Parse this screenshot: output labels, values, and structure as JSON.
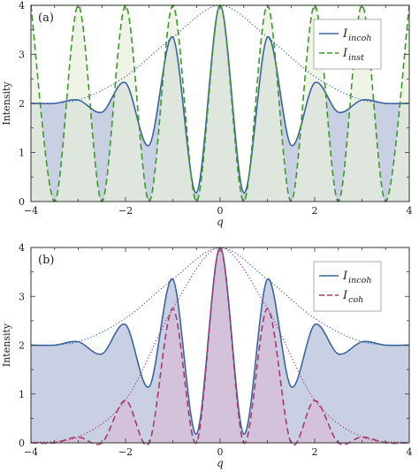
{
  "chart_data": [
    {
      "type": "area",
      "panel_label": "(a)",
      "xlabel": "q",
      "ylabel": "Intensity",
      "xlim": [
        -4,
        4
      ],
      "ylim": [
        0,
        4
      ],
      "x_ticks": [
        "-4",
        "-2",
        "0",
        "2",
        "4"
      ],
      "y_ticks": [
        "0",
        "1",
        "2",
        "3",
        "4"
      ],
      "legend_position": "top-right",
      "series": [
        {
          "key": "I_incoh",
          "name": "I",
          "subscript": "incoh",
          "style": "solid",
          "color": "#3c64a0",
          "fill": "#c3cbe1",
          "x": [
            -4,
            -3.5,
            -3,
            -2.5,
            -2,
            -1.5,
            -1,
            -0.5,
            0,
            0.5,
            1,
            1.5,
            2,
            2.5,
            3,
            3.5,
            4
          ],
          "y": [
            2,
            2,
            2.07,
            1.82,
            2.42,
            1.15,
            3.35,
            0.18,
            4,
            0.18,
            3.35,
            1.15,
            2.42,
            1.82,
            2.07,
            2,
            2
          ]
        },
        {
          "key": "I_inst",
          "name": "I",
          "subscript": "inst",
          "style": "dashed",
          "color": "#3a9a2a",
          "fill": "#e8f0dc",
          "x": [
            -4,
            -3.5,
            -3,
            -2.5,
            -2,
            -1.5,
            -1,
            -0.5,
            0,
            0.5,
            1,
            1.5,
            2,
            2.5,
            3,
            3.5,
            4
          ],
          "y": [
            4,
            0,
            4,
            0,
            4,
            0,
            4,
            0,
            4,
            0,
            4,
            0,
            4,
            0,
            4,
            0,
            4
          ]
        },
        {
          "key": "envelope",
          "style": "dotted",
          "color": "#3c64a0",
          "x": [
            -4,
            -3,
            -2,
            -1,
            0,
            1,
            2,
            3,
            4
          ],
          "y": [
            2,
            2.07,
            2.55,
            3.35,
            4,
            3.35,
            2.55,
            2.07,
            2
          ]
        },
        {
          "key": "upper_bound",
          "style": "dotted",
          "color": "#3a9a2a",
          "x": [
            -4,
            4
          ],
          "y": [
            4,
            4
          ]
        }
      ]
    },
    {
      "type": "area",
      "panel_label": "(b)",
      "xlabel": "q",
      "ylabel": "Intensity",
      "xlim": [
        -4,
        4
      ],
      "ylim": [
        0,
        4
      ],
      "x_ticks": [
        "-4",
        "-2",
        "0",
        "2",
        "4"
      ],
      "y_ticks": [
        "0",
        "1",
        "2",
        "3",
        "4"
      ],
      "legend_position": "top-right",
      "series": [
        {
          "key": "I_incoh",
          "name": "I",
          "subscript": "incoh",
          "style": "solid",
          "color": "#3c64a0",
          "fill": "#c3cbe1",
          "x": [
            -4,
            -3.5,
            -3,
            -2.5,
            -2,
            -1.5,
            -1,
            -0.5,
            0,
            0.5,
            1,
            1.5,
            2,
            2.5,
            3,
            3.5,
            4
          ],
          "y": [
            2,
            2,
            2.07,
            1.82,
            2.42,
            1.15,
            3.35,
            0.18,
            4,
            0.18,
            3.35,
            1.15,
            2.42,
            1.82,
            2.07,
            2,
            2
          ]
        },
        {
          "key": "I_coh",
          "name": "I",
          "subscript": "coh",
          "style": "dashed",
          "color": "#a8386e",
          "fill": "#d7bcd6",
          "x": [
            -4,
            -3.5,
            -3,
            -2.5,
            -2,
            -1.5,
            -1,
            -0.5,
            0,
            0.5,
            1,
            1.5,
            2,
            2.5,
            3,
            3.5,
            4
          ],
          "y": [
            0,
            0,
            0.12,
            0,
            0.87,
            0,
            2.75,
            0,
            4,
            0,
            2.75,
            0,
            0.87,
            0,
            0.12,
            0,
            0
          ]
        },
        {
          "key": "envelope",
          "style": "dotted",
          "color": "#3c64a0",
          "x": [
            -4,
            -3,
            -2,
            -1,
            0,
            1,
            2,
            3,
            4
          ],
          "y": [
            2,
            2.07,
            2.55,
            3.35,
            4,
            3.35,
            2.55,
            2.07,
            2
          ]
        },
        {
          "key": "coh_envelope",
          "style": "dotted",
          "color": "#a8386e",
          "x": [
            -4,
            -3,
            -2,
            -1,
            0,
            1,
            2,
            3,
            4
          ],
          "y": [
            0.01,
            0.12,
            0.87,
            2.75,
            4,
            2.75,
            0.87,
            0.12,
            0.01
          ]
        }
      ]
    }
  ]
}
